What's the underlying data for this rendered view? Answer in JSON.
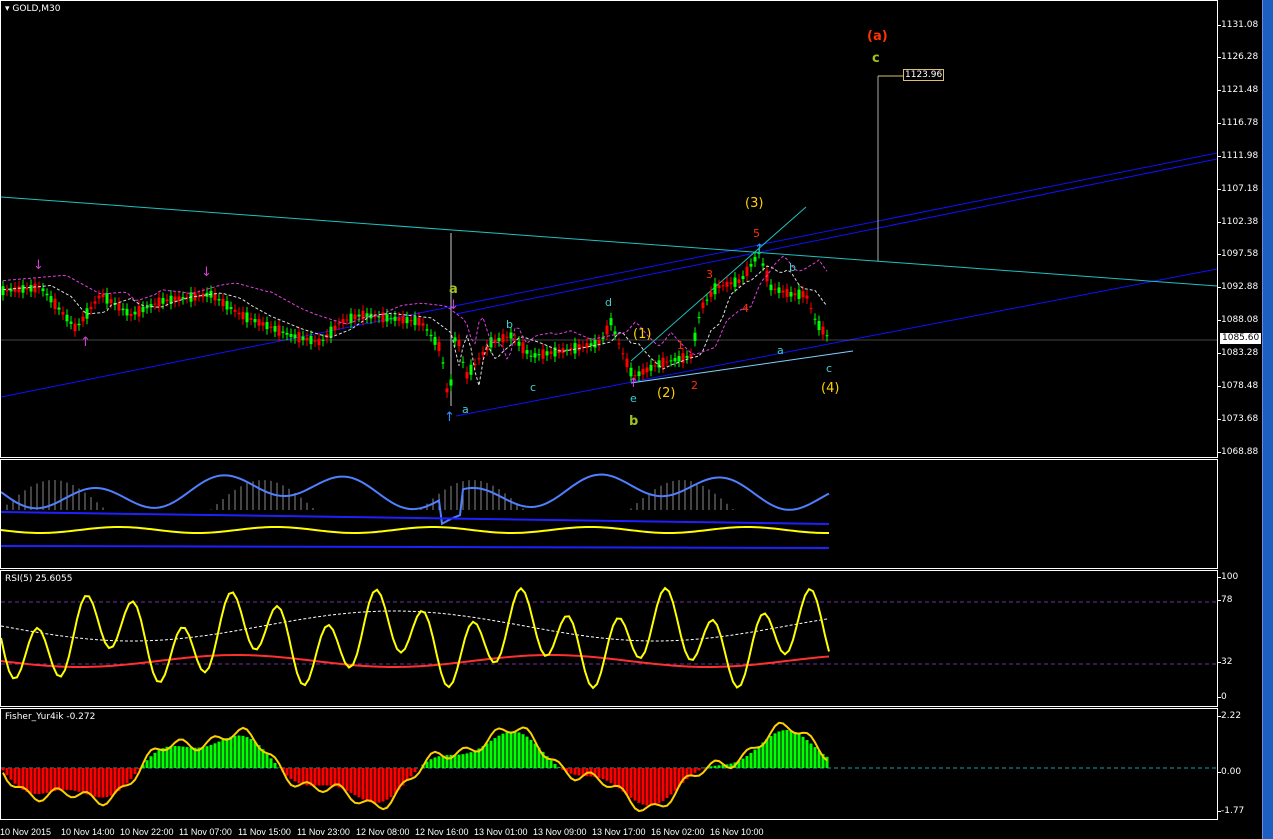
{
  "main": {
    "title": "GOLD,M30",
    "current_price": "1085.60",
    "target_price": "1123.96",
    "price_ticks": [
      "1131.08",
      "1126.28",
      "1121.48",
      "1116.78",
      "1111.98",
      "1107.18",
      "1102.38",
      "1097.58",
      "1092.88",
      "1088.08",
      "1083.28",
      "1078.48",
      "1073.68",
      "1068.88"
    ],
    "wave_labels": {
      "a_big": "(a)",
      "c_big": "c",
      "a1": "a",
      "b1": "b",
      "c1": "c",
      "d1": "d",
      "e1": "e",
      "b_green": "b",
      "w1": "(1)",
      "w2": "(2)",
      "w3": "(3)",
      "w4": "(4)",
      "s1": "1",
      "s2": "2",
      "s3": "3",
      "s4": "4",
      "s5": "5",
      "a2": "a",
      "b2": "b",
      "c2": "c",
      "a0": "a"
    },
    "colors": {
      "bull": "#00ff00",
      "bear": "#ff0000",
      "channel": "#1010ff",
      "trend": "#20c0c0",
      "wave_yellow": "#ffd000",
      "wave_red": "#ff3300",
      "wave_cyan": "#40d0d0",
      "wave_green": "#a0c020"
    }
  },
  "rsi": {
    "title": "RSI(5) 25.6055",
    "ticks": [
      "100",
      "78",
      "32",
      "0"
    ]
  },
  "fisher": {
    "title": "Fisher_Yur4ik -0.272",
    "ticks": [
      "2.22",
      "0.00",
      "-1.77"
    ]
  },
  "time_axis": [
    "10 Nov 2015",
    "10 Nov 14:00",
    "10 Nov 22:00",
    "11 Nov 07:00",
    "11 Nov 15:00",
    "11 Nov 23:00",
    "12 Nov 08:00",
    "12 Nov 16:00",
    "13 Nov 01:00",
    "13 Nov 09:00",
    "13 Nov 17:00",
    "16 Nov 02:00",
    "16 Nov 10:00"
  ]
}
